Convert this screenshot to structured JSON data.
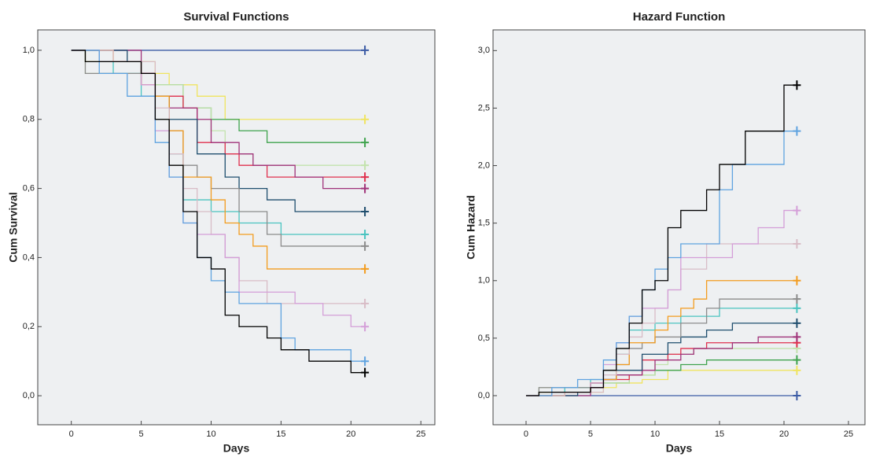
{
  "chart_data": [
    {
      "type": "step",
      "title": "Survival Functions",
      "xlabel": "Days",
      "ylabel": "Cum Survival",
      "xlim": [
        -2.4,
        26
      ],
      "ylim": [
        -0.084,
        1.059
      ],
      "xticks": [
        0,
        5,
        10,
        15,
        20,
        25
      ],
      "yticks": [
        {
          "value": 0,
          "label": "0,0"
        },
        {
          "value": 0.2,
          "label": "0,2"
        },
        {
          "value": 0.4,
          "label": "0,4"
        },
        {
          "value": 0.6,
          "label": "0,6"
        },
        {
          "value": 0.8,
          "label": "0,8"
        },
        {
          "value": 1,
          "label": "1,0"
        }
      ],
      "series": [
        {
          "color": "#3b5ba5",
          "x": [
            0,
            21
          ],
          "values": [
            1,
            1
          ]
        },
        {
          "color": "#f0e460",
          "x": [
            0,
            1,
            6,
            7,
            9,
            11,
            21
          ],
          "values": [
            1,
            0.967,
            0.933,
            0.9,
            0.867,
            0.8,
            0.8
          ]
        },
        {
          "color": "#3fa34d",
          "x": [
            0,
            2,
            5,
            6,
            8,
            10,
            12,
            14,
            21
          ],
          "values": [
            1,
            0.967,
            0.933,
            0.9,
            0.833,
            0.8,
            0.767,
            0.733,
            0.733
          ]
        },
        {
          "color": "#c3e3ad",
          "x": [
            0,
            1,
            6,
            8,
            10,
            11,
            13,
            21
          ],
          "values": [
            1,
            0.933,
            0.9,
            0.833,
            0.767,
            0.7,
            0.667,
            0.667
          ]
        },
        {
          "color": "#e0304e",
          "x": [
            0,
            2,
            5,
            6,
            8,
            9,
            11,
            12,
            14,
            21
          ],
          "values": [
            1,
            0.967,
            0.933,
            0.867,
            0.833,
            0.733,
            0.7,
            0.667,
            0.633,
            0.633
          ]
        },
        {
          "color": "#a0337a",
          "x": [
            0,
            5,
            6,
            7,
            9,
            10,
            12,
            13,
            16,
            18,
            21
          ],
          "values": [
            1,
            0.933,
            0.867,
            0.833,
            0.8,
            0.733,
            0.7,
            0.667,
            0.633,
            0.6,
            0.6
          ]
        },
        {
          "color": "#1f4e6e",
          "x": [
            0,
            4,
            5,
            6,
            7,
            9,
            11,
            12,
            14,
            16,
            21
          ],
          "values": [
            1,
            0.967,
            0.9,
            0.867,
            0.8,
            0.7,
            0.633,
            0.6,
            0.567,
            0.533,
            0.533
          ]
        },
        {
          "color": "#4ac4c0",
          "x": [
            0,
            2,
            3,
            5,
            6,
            7,
            8,
            10,
            12,
            15,
            21
          ],
          "values": [
            1,
            0.967,
            0.933,
            0.867,
            0.8,
            0.7,
            0.567,
            0.533,
            0.5,
            0.467,
            0.467
          ]
        },
        {
          "color": "#8c8c8c",
          "x": [
            0,
            1,
            5,
            6,
            7,
            8,
            9,
            10,
            12,
            14,
            15,
            21
          ],
          "values": [
            1,
            0.933,
            0.9,
            0.8,
            0.767,
            0.667,
            0.633,
            0.6,
            0.533,
            0.467,
            0.433,
            0.433
          ]
        },
        {
          "color": "#f39c1f",
          "x": [
            0,
            3,
            5,
            6,
            7,
            8,
            10,
            11,
            12,
            13,
            14,
            21
          ],
          "values": [
            1,
            0.967,
            0.9,
            0.867,
            0.767,
            0.633,
            0.567,
            0.5,
            0.467,
            0.433,
            0.367,
            0.367
          ]
        },
        {
          "color": "#d8bcc6",
          "x": [
            0,
            3,
            6,
            7,
            8,
            9,
            10,
            11,
            12,
            14,
            21
          ],
          "values": [
            1,
            0.967,
            0.833,
            0.7,
            0.6,
            0.533,
            0.467,
            0.4,
            0.333,
            0.267,
            0.267
          ]
        },
        {
          "color": "#d49ed8",
          "x": [
            0,
            2,
            5,
            6,
            7,
            8,
            9,
            11,
            12,
            16,
            18,
            20,
            21
          ],
          "values": [
            1,
            0.967,
            0.9,
            0.767,
            0.633,
            0.5,
            0.467,
            0.4,
            0.3,
            0.267,
            0.233,
            0.2,
            0.2
          ]
        },
        {
          "color": "#5fa3e0",
          "x": [
            0,
            2,
            4,
            6,
            7,
            8,
            9,
            10,
            11,
            12,
            15,
            16,
            20,
            21
          ],
          "values": [
            1,
            0.933,
            0.867,
            0.733,
            0.633,
            0.5,
            0.4,
            0.333,
            0.3,
            0.267,
            0.167,
            0.133,
            0.1,
            0.1
          ]
        },
        {
          "color": "#000000",
          "x": [
            0,
            1,
            5,
            6,
            7,
            8,
            9,
            10,
            11,
            12,
            14,
            15,
            17,
            20,
            21
          ],
          "values": [
            1,
            0.967,
            0.933,
            0.8,
            0.667,
            0.533,
            0.4,
            0.367,
            0.233,
            0.2,
            0.167,
            0.133,
            0.1,
            0.067,
            0.067
          ]
        }
      ]
    },
    {
      "type": "step",
      "title": "Hazard Function",
      "xlabel": "Days",
      "ylabel": "Cum Hazard",
      "xlim": [
        -2.56,
        26.28
      ],
      "ylim": [
        -0.253,
        3.18
      ],
      "xticks": [
        0,
        5,
        10,
        15,
        20,
        25
      ],
      "yticks": [
        {
          "value": 0,
          "label": "0,0"
        },
        {
          "value": 0.5,
          "label": "0,5"
        },
        {
          "value": 1,
          "label": "1,0"
        },
        {
          "value": 1.5,
          "label": "1,5"
        },
        {
          "value": 2,
          "label": "2,0"
        },
        {
          "value": 2.5,
          "label": "2,5"
        },
        {
          "value": 3,
          "label": "3,0"
        }
      ],
      "series": [
        {
          "color": "#3b5ba5",
          "x": [
            0,
            21
          ],
          "values": [
            0,
            0
          ]
        },
        {
          "color": "#f0e460",
          "x": [
            0,
            1,
            6,
            7,
            9,
            11,
            21
          ],
          "values": [
            0,
            0.03,
            0.07,
            0.11,
            0.14,
            0.22,
            0.22
          ]
        },
        {
          "color": "#3fa34d",
          "x": [
            0,
            2,
            5,
            6,
            8,
            10,
            12,
            14,
            21
          ],
          "values": [
            0,
            0.03,
            0.07,
            0.11,
            0.18,
            0.22,
            0.27,
            0.31,
            0.31
          ]
        },
        {
          "color": "#c3e3ad",
          "x": [
            0,
            1,
            6,
            8,
            10,
            11,
            13,
            21
          ],
          "values": [
            0,
            0.07,
            0.11,
            0.18,
            0.27,
            0.36,
            0.41,
            0.41
          ]
        },
        {
          "color": "#e0304e",
          "x": [
            0,
            2,
            5,
            6,
            8,
            9,
            11,
            12,
            14,
            21
          ],
          "values": [
            0,
            0.03,
            0.07,
            0.14,
            0.18,
            0.31,
            0.36,
            0.41,
            0.46,
            0.46
          ]
        },
        {
          "color": "#a0337a",
          "x": [
            0,
            5,
            6,
            7,
            9,
            10,
            12,
            13,
            16,
            18,
            21
          ],
          "values": [
            0,
            0.07,
            0.14,
            0.18,
            0.22,
            0.31,
            0.36,
            0.41,
            0.46,
            0.51,
            0.51
          ]
        },
        {
          "color": "#1f4e6e",
          "x": [
            0,
            4,
            5,
            6,
            7,
            9,
            11,
            12,
            14,
            16,
            21
          ],
          "values": [
            0,
            0.03,
            0.11,
            0.14,
            0.22,
            0.36,
            0.46,
            0.51,
            0.57,
            0.63,
            0.63
          ]
        },
        {
          "color": "#4ac4c0",
          "x": [
            0,
            2,
            3,
            5,
            6,
            7,
            8,
            10,
            12,
            15,
            21
          ],
          "values": [
            0,
            0.03,
            0.07,
            0.14,
            0.22,
            0.36,
            0.57,
            0.63,
            0.69,
            0.76,
            0.76
          ]
        },
        {
          "color": "#8c8c8c",
          "x": [
            0,
            1,
            5,
            6,
            7,
            8,
            9,
            10,
            12,
            14,
            15,
            21
          ],
          "values": [
            0,
            0.07,
            0.11,
            0.22,
            0.27,
            0.41,
            0.46,
            0.51,
            0.63,
            0.76,
            0.84,
            0.84
          ]
        },
        {
          "color": "#f39c1f",
          "x": [
            0,
            3,
            5,
            6,
            7,
            8,
            10,
            11,
            12,
            13,
            14,
            21
          ],
          "values": [
            0,
            0.03,
            0.11,
            0.14,
            0.27,
            0.46,
            0.57,
            0.69,
            0.76,
            0.84,
            1,
            1
          ]
        },
        {
          "color": "#d8bcc6",
          "x": [
            0,
            3,
            6,
            7,
            8,
            9,
            10,
            11,
            12,
            14,
            21
          ],
          "values": [
            0,
            0.03,
            0.18,
            0.36,
            0.51,
            0.63,
            0.76,
            0.92,
            1.1,
            1.32,
            1.32
          ]
        },
        {
          "color": "#d49ed8",
          "x": [
            0,
            2,
            5,
            6,
            7,
            8,
            9,
            11,
            12,
            16,
            18,
            20,
            21
          ],
          "values": [
            0,
            0.03,
            0.11,
            0.27,
            0.46,
            0.69,
            0.76,
            0.92,
            1.2,
            1.32,
            1.46,
            1.61,
            1.61
          ]
        },
        {
          "color": "#5fa3e0",
          "x": [
            0,
            2,
            4,
            6,
            7,
            8,
            9,
            10,
            11,
            12,
            15,
            16,
            20,
            21
          ],
          "values": [
            0,
            0.07,
            0.14,
            0.31,
            0.46,
            0.69,
            0.92,
            1.1,
            1.2,
            1.32,
            1.79,
            2.01,
            2.3,
            2.3
          ]
        },
        {
          "color": "#000000",
          "x": [
            0,
            1,
            5,
            6,
            7,
            8,
            9,
            10,
            11,
            12,
            14,
            15,
            17,
            20,
            21
          ],
          "values": [
            0,
            0.03,
            0.07,
            0.22,
            0.41,
            0.63,
            0.92,
            1,
            1.46,
            1.61,
            1.79,
            2.01,
            2.3,
            2.7,
            2.7
          ]
        }
      ]
    }
  ]
}
